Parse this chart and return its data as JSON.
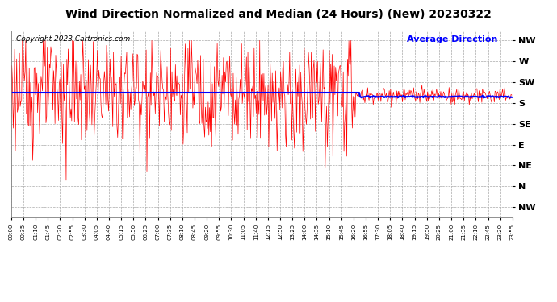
{
  "title": "Wind Direction Normalized and Median (24 Hours) (New) 20230322",
  "copyright_text": "Copyright 2023 Cartronics.com",
  "legend_label": "Average Direction",
  "legend_color": "#0000ff",
  "background_color": "#ffffff",
  "plot_bg_color": "#ffffff",
  "y_tick_labels": [
    "NW",
    "W",
    "SW",
    "S",
    "SE",
    "E",
    "NE",
    "N",
    "NW"
  ],
  "y_tick_values": [
    8,
    7,
    6,
    5,
    4,
    3,
    2,
    1,
    0
  ],
  "y_lim": [
    -0.5,
    8.5
  ],
  "grid_color": "#aaaaaa",
  "grid_style": "--",
  "red_line_color": "#ff0000",
  "blue_line_color": "#0000ff",
  "avg_value": 5.35,
  "avg_value_late": 5.25,
  "title_fontsize": 10,
  "copyright_fontsize": 6.5,
  "legend_fontsize": 8,
  "x_tick_labels": [
    "00:00",
    "00:35",
    "01:10",
    "01:45",
    "02:20",
    "02:55",
    "03:30",
    "04:05",
    "04:40",
    "05:15",
    "05:50",
    "06:25",
    "07:00",
    "07:35",
    "08:10",
    "08:45",
    "09:20",
    "09:55",
    "10:30",
    "11:05",
    "11:40",
    "12:15",
    "12:50",
    "13:25",
    "14:00",
    "14:35",
    "15:10",
    "15:45",
    "16:20",
    "16:55",
    "17:30",
    "18:05",
    "18:40",
    "19:15",
    "19:50",
    "20:25",
    "21:00",
    "21:35",
    "22:10",
    "22:45",
    "23:20",
    "23:55"
  ]
}
